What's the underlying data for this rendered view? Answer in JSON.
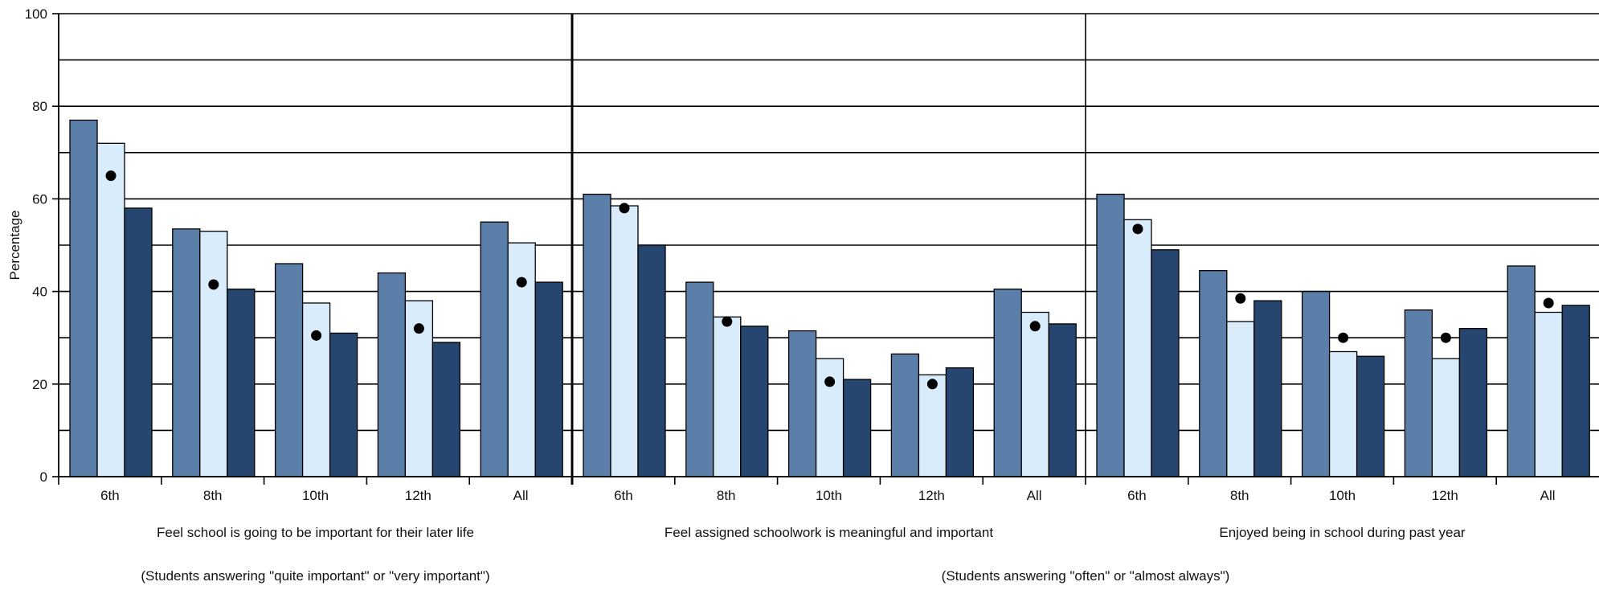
{
  "chart_data": {
    "type": "bar",
    "ylabel": "Percentage",
    "ylim": [
      0,
      100
    ],
    "yticks": [
      "0",
      "20",
      "40",
      "60",
      "80",
      "100"
    ],
    "grid": true,
    "categories": [
      "6th",
      "8th",
      "10th",
      "12th",
      "All"
    ],
    "colors": {
      "bar_series_1": "#5b7fa8",
      "bar_series_2": "#d9ecfb",
      "bar_series_3": "#27466f",
      "marker": "#000000"
    },
    "panels": [
      {
        "title": "Feel school is going to be important for their later life",
        "bars": [
          [
            77,
            72,
            58
          ],
          [
            53.5,
            53,
            40.5
          ],
          [
            46,
            37.5,
            31
          ],
          [
            44,
            38,
            29
          ],
          [
            55,
            50.5,
            42
          ]
        ],
        "markers": [
          65,
          41.5,
          30.5,
          32,
          42
        ]
      },
      {
        "title": "Feel assigned schoolwork is meaningful and important",
        "bars": [
          [
            61,
            58.5,
            50
          ],
          [
            42,
            34.5,
            32.5
          ],
          [
            31.5,
            25.5,
            21
          ],
          [
            26.5,
            22,
            23.5
          ],
          [
            40.5,
            35.5,
            33
          ]
        ],
        "markers": [
          58,
          33.5,
          20.5,
          20,
          32.5
        ]
      },
      {
        "title": "Enjoyed being in school during past year",
        "bars": [
          [
            61,
            55.5,
            49
          ],
          [
            44.5,
            33.5,
            38
          ],
          [
            40,
            27,
            26
          ],
          [
            36,
            25.5,
            32
          ],
          [
            45.5,
            35.5,
            37
          ]
        ],
        "markers": [
          53.5,
          38.5,
          30,
          30,
          37.5
        ]
      }
    ],
    "footnotes": [
      "(Students answering \"quite important\" or \"very important\")",
      "(Students answering \"often\" or \"almost always\")"
    ]
  }
}
